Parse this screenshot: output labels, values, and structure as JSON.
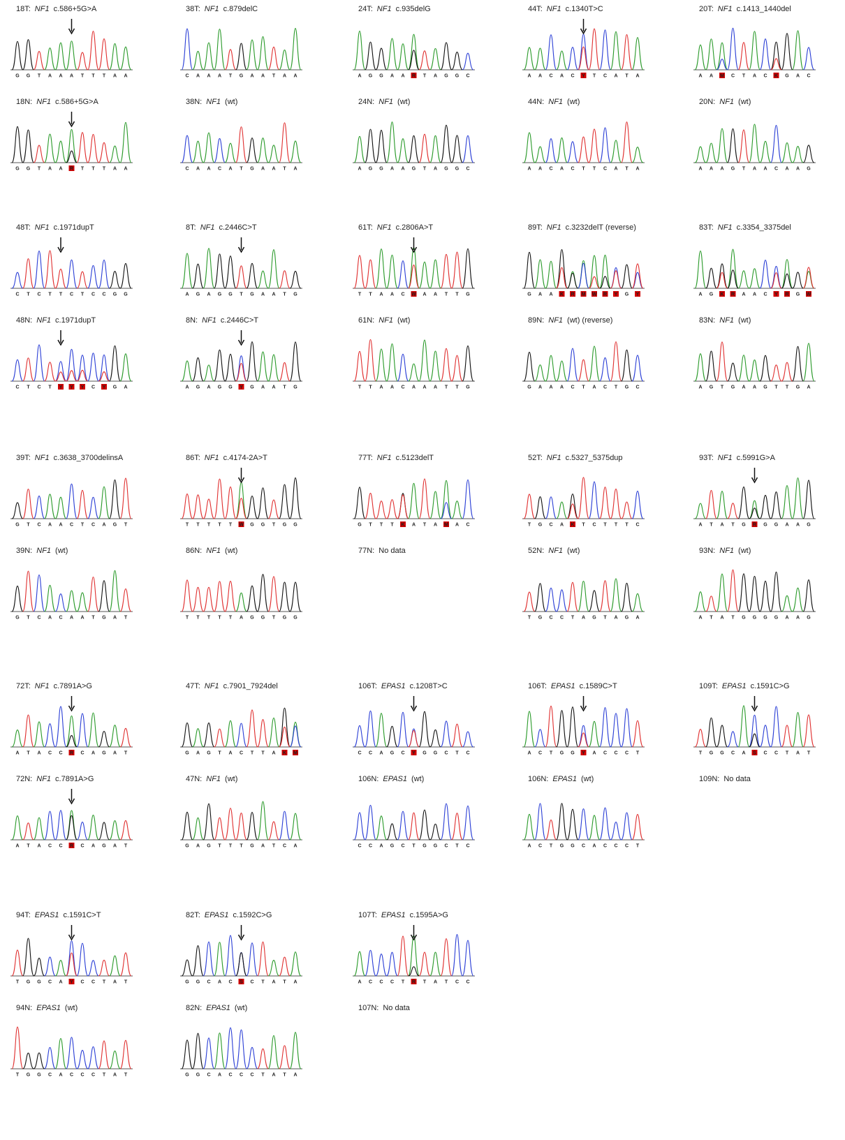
{
  "rows": [
    [
      {
        "tumor": {
          "sample": "18T:",
          "gene": "NF1",
          "variant": "c.586+5G>A",
          "seq": "GGTAAATTTAA",
          "arrow": 5
        },
        "normal": {
          "sample": "18N:",
          "gene": "NF1",
          "variant": "c.586+5G>A",
          "seq": "GGTAARTTTAA",
          "arrow": 5
        }
      },
      {
        "tumor": {
          "sample": "38T:",
          "gene": "NF1",
          "variant": "c.879delC",
          "seq": "CAAATGAATAA"
        },
        "normal": {
          "sample": "38N:",
          "gene": "NF1",
          "variant": "(wt)",
          "seq": "CAACATGAATA"
        }
      },
      {
        "tumor": {
          "sample": "24T:",
          "gene": "NF1",
          "variant": "c.935delG",
          "seq": "AGGAARTAGGC"
        },
        "normal": {
          "sample": "24N:",
          "gene": "NF1",
          "variant": "(wt)",
          "seq": "AGGAAGTAGGC"
        }
      },
      {
        "tumor": {
          "sample": "44T:",
          "gene": "NF1",
          "variant": "c.1340T>C",
          "seq": "AACACYTCATA",
          "arrow": 5
        },
        "normal": {
          "sample": "44N:",
          "gene": "NF1",
          "variant": "(wt)",
          "seq": "AACACTTCATA"
        }
      },
      {
        "tumor": {
          "sample": "20T:",
          "gene": "NF1",
          "variant": "c.1413_1440del",
          "seq": "AAMCTACKGAC"
        },
        "normal": {
          "sample": "20N:",
          "gene": "NF1",
          "variant": "(wt)",
          "seq": "AAAGTAACAAG"
        }
      }
    ],
    [
      {
        "tumor": {
          "sample": "48T:",
          "gene": "NF1",
          "variant": "c.1971dupT",
          "seq": "CTCTTCTCCGG",
          "arrow": 4
        },
        "normal": {
          "sample": "48N:",
          "gene": "NF1",
          "variant": "c.1971dupT",
          "seq": "CTCTYYYCYGA",
          "arrow": 4
        }
      },
      {
        "tumor": {
          "sample": "8T:",
          "gene": "NF1",
          "variant": "c.2446C>T",
          "seq": "AGAGGTGAATG",
          "arrow": 5
        },
        "normal": {
          "sample": "8N:",
          "gene": "NF1",
          "variant": "c.2446C>T",
          "seq": "AGAGGYGAATG",
          "arrow": 5
        }
      },
      {
        "tumor": {
          "sample": "61T:",
          "gene": "NF1",
          "variant": "c.2806A>T",
          "seq": "TTAACWAATTG",
          "arrow": 5
        },
        "normal": {
          "sample": "61N:",
          "gene": "NF1",
          "variant": "(wt)",
          "seq": "TTAACAAATTG"
        }
      },
      {
        "tumor": {
          "sample": "89T:",
          "gene": "NF1",
          "variant": "c.3232delT  (reverse)",
          "seq": "GAAKRMWRYGY"
        },
        "normal": {
          "sample": "89N:",
          "gene": "NF1",
          "variant": "(wt)  (reverse)",
          "seq": "GAAACTACTGC"
        }
      },
      {
        "tumor": {
          "sample": "83T:",
          "gene": "NF1",
          "variant": "c.3354_3375del",
          "seq": "AGKRAACYRGW"
        },
        "normal": {
          "sample": "83N:",
          "gene": "NF1",
          "variant": "(wt)",
          "seq": "AGTGAAGTTGA"
        }
      }
    ],
    [
      {
        "tumor": {
          "sample": "39T:",
          "gene": "NF1",
          "variant": "c.3638_3700delinsA",
          "seq": "GTCAACTCAGT"
        },
        "normal": {
          "sample": "39N:",
          "gene": "NF1",
          "variant": "(wt)",
          "seq": "GTCACAATGAT"
        }
      },
      {
        "tumor": {
          "sample": "86T:",
          "gene": "NF1",
          "variant": "c.4174-2A>T",
          "seq": "TTTTTWGGTGG",
          "arrow": 5
        },
        "normal": {
          "sample": "86N:",
          "gene": "NF1",
          "variant": "(wt)",
          "seq": "TTTTTAGGTGG"
        }
      },
      {
        "tumor": {
          "sample": "77T:",
          "gene": "NF1",
          "variant": "c.5123delT",
          "seq": "GTTTKATAMAC"
        },
        "normal": {
          "sample": "77N:",
          "note": "No data"
        }
      },
      {
        "tumor": {
          "sample": "52T:",
          "gene": "NF1",
          "variant": "c.5327_5375dup",
          "seq": "TGCAKTCTTTC"
        },
        "normal": {
          "sample": "52N:",
          "gene": "NF1",
          "variant": "(wt)",
          "seq": "TGCCTAGTAGA"
        }
      },
      {
        "tumor": {
          "sample": "93T:",
          "gene": "NF1",
          "variant": "c.5991G>A",
          "seq": "ATATGRGGAAG",
          "arrow": 5
        },
        "normal": {
          "sample": "93N:",
          "gene": "NF1",
          "variant": "(wt)",
          "seq": "ATATGGGGAAG"
        }
      }
    ],
    [
      {
        "tumor": {
          "sample": "72T:",
          "gene": "NF1",
          "variant": "c.7891A>G",
          "seq": "ATACCRCAGAT",
          "arrow": 5
        },
        "normal": {
          "sample": "72N:",
          "gene": "NF1",
          "variant": "c.7891A>G",
          "seq": "ATACCRCAGAT",
          "arrow": 5
        }
      },
      {
        "tumor": {
          "sample": "47T:",
          "gene": "NF1",
          "variant": "c.7901_7924del",
          "seq": "GAGTACTTAKM"
        },
        "normal": {
          "sample": "47N:",
          "gene": "NF1",
          "variant": "(wt)",
          "seq": "GAGTTTGATCA"
        }
      },
      {
        "tumor": {
          "sample": "106T:",
          "gene": "EPAS1",
          "variant": "c.1208T>C",
          "seq": "CCAGCYGGCTC",
          "arrow": 5
        },
        "normal": {
          "sample": "106N:",
          "gene": "EPAS1",
          "variant": "(wt)",
          "seq": "CCAGCTGGCTC"
        }
      },
      {
        "tumor": {
          "sample": "106T:",
          "gene": "EPAS1",
          "variant": "c.1589C>T",
          "seq": "ACTGGYACCCT",
          "arrow": 5
        },
        "normal": {
          "sample": "106N:",
          "gene": "EPAS1",
          "variant": "(wt)",
          "seq": "ACTGGCACCCT"
        }
      },
      {
        "tumor": {
          "sample": "109T:",
          "gene": "EPAS1",
          "variant": "c.1591C>G",
          "seq": "TGGCASCCTAT",
          "arrow": 5
        },
        "normal": {
          "sample": "109N:",
          "note": "No data"
        }
      }
    ],
    [
      {
        "tumor": {
          "sample": "94T:",
          "gene": "EPAS1",
          "variant": "c.1591C>T",
          "seq": "TGGCAYCCTAT",
          "arrow": 5
        },
        "normal": {
          "sample": "94N:",
          "gene": "EPAS1",
          "variant": "(wt)",
          "seq": "TGGCACCCTAT"
        }
      },
      {
        "tumor": {
          "sample": "82T:",
          "gene": "EPAS1",
          "variant": "c.1592C>G",
          "seq": "GGCACSCTATA",
          "arrow": 5
        },
        "normal": {
          "sample": "82N:",
          "gene": "EPAS1",
          "variant": "(wt)",
          "seq": "GGCACCCTATA"
        }
      },
      {
        "tumor": {
          "sample": "107T:",
          "gene": "EPAS1",
          "variant": "c.1595A>G",
          "seq": "ACCCTRTATCC",
          "arrow": 5
        },
        "normal": {
          "sample": "107N:",
          "note": "No data"
        }
      }
    ]
  ]
}
